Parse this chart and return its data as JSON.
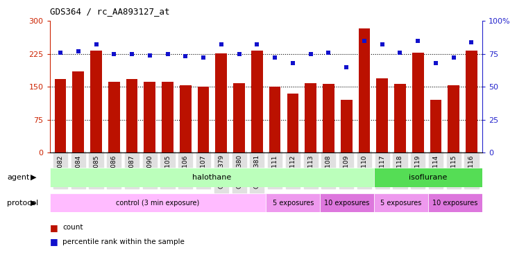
{
  "title": "GDS364 / rc_AA893127_at",
  "samples": [
    "GSM5082",
    "GSM5084",
    "GSM5085",
    "GSM5086",
    "GSM5087",
    "GSM5090",
    "GSM5105",
    "GSM5106",
    "GSM5107",
    "GSM11379",
    "GSM11380",
    "GSM11381",
    "GSM5111",
    "GSM5112",
    "GSM5113",
    "GSM5108",
    "GSM5109",
    "GSM5110",
    "GSM5117",
    "GSM5118",
    "GSM5119",
    "GSM5114",
    "GSM5115",
    "GSM5116"
  ],
  "counts": [
    168,
    185,
    232,
    162,
    167,
    161,
    161,
    153,
    150,
    226,
    158,
    233,
    150,
    135,
    158,
    157,
    120,
    283,
    170,
    157,
    228,
    120,
    153,
    232
  ],
  "percentiles": [
    76,
    77,
    82,
    75,
    75,
    74,
    75,
    73,
    72,
    82,
    75,
    82,
    72,
    68,
    75,
    76,
    65,
    85,
    82,
    76,
    85,
    68,
    72,
    84
  ],
  "bar_color": "#bb1100",
  "dot_color": "#1111cc",
  "left_ylim": [
    0,
    300
  ],
  "right_ylim": [
    0,
    100
  ],
  "left_yticks": [
    0,
    75,
    150,
    225,
    300
  ],
  "right_yticks": [
    0,
    25,
    50,
    75,
    100
  ],
  "right_yticklabels": [
    "0",
    "25",
    "50",
    "75",
    "100%"
  ],
  "hline_values": [
    75,
    150,
    225
  ],
  "agent_groups": [
    {
      "label": "halothane",
      "start": 0,
      "end": 18,
      "color": "#bbffbb"
    },
    {
      "label": "isoflurane",
      "start": 18,
      "end": 24,
      "color": "#55dd55"
    }
  ],
  "protocol_groups": [
    {
      "label": "control (3 min exposure)",
      "start": 0,
      "end": 12,
      "color": "#ffbbff"
    },
    {
      "label": "5 exposures",
      "start": 12,
      "end": 15,
      "color": "#ee99ee"
    },
    {
      "label": "10 exposures",
      "start": 15,
      "end": 18,
      "color": "#dd77dd"
    },
    {
      "label": "5 exposures",
      "start": 18,
      "end": 21,
      "color": "#ee99ee"
    },
    {
      "label": "10 exposures",
      "start": 21,
      "end": 24,
      "color": "#dd77dd"
    }
  ],
  "legend_items": [
    {
      "label": "count",
      "color": "#bb1100"
    },
    {
      "label": "percentile rank within the sample",
      "color": "#1111cc"
    }
  ],
  "bg_color": "#ffffff",
  "grid_color": "#000000",
  "tick_label_color_left": "#cc2200",
  "tick_label_color_right": "#2222cc",
  "title_fontsize": 9,
  "bar_width": 0.65
}
